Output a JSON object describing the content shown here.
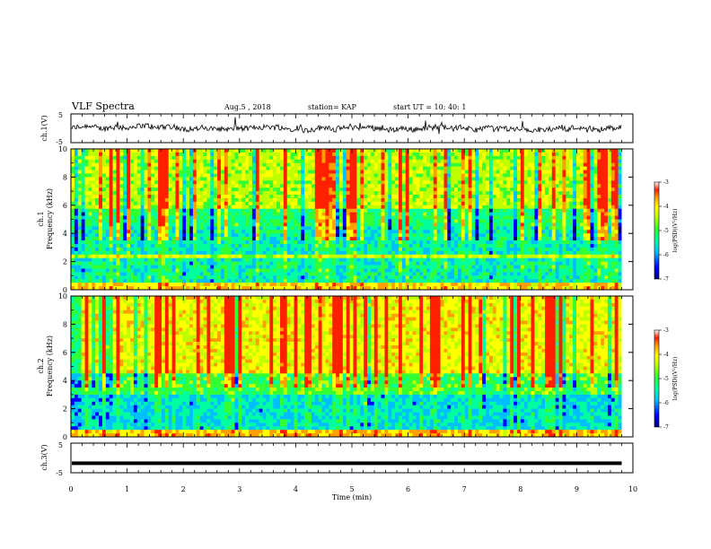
{
  "header": {
    "title": "VLF Spectra",
    "date": "Aug.5  , 2018",
    "station": "station= KAP",
    "start": "start  UT =   10: 40: 1"
  },
  "chart_data": [
    {
      "type": "line",
      "name": "ch1-waveform",
      "ylabel": "ch.1(V)",
      "ylim": [
        -5,
        5
      ],
      "yticks": [
        "5",
        "-5"
      ],
      "xlim": [
        0,
        10
      ],
      "data_extent_min": 9.8,
      "baseline": 0,
      "approx_amplitude": 1.2
    },
    {
      "type": "heatmap",
      "name": "ch1-spectrogram",
      "ylabel": "ch.1\nFrequency (kHz)",
      "ylim": [
        0,
        10
      ],
      "yticks": [
        "0",
        "2",
        "4",
        "6",
        "8",
        "10"
      ],
      "xlim": [
        0,
        10
      ],
      "data_extent_min": 9.8,
      "colorbar": {
        "label": "log(PSD)(V²/Hz)",
        "range": [
          -7,
          -3
        ],
        "ticks": [
          "-3",
          "-4",
          "-5",
          "-6",
          "-7"
        ]
      }
    },
    {
      "type": "heatmap",
      "name": "ch2-spectrogram",
      "ylabel": "ch.2\nFrequency (kHz)",
      "ylim": [
        0,
        10
      ],
      "yticks": [
        "0",
        "2",
        "4",
        "6",
        "8",
        "10"
      ],
      "xlim": [
        0,
        10
      ],
      "data_extent_min": 9.8,
      "colorbar": {
        "label": "log(PSD)(V²/Hz)",
        "range": [
          -7,
          -3
        ],
        "ticks": [
          "-3",
          "-4",
          "-5",
          "-6",
          "-7"
        ]
      }
    },
    {
      "type": "line",
      "name": "ch3-waveform",
      "ylabel": "ch.3(V)",
      "ylim": [
        -5,
        5
      ],
      "yticks": [
        "5",
        "-5"
      ],
      "xlim": [
        0,
        10
      ],
      "data_extent_min": 9.8,
      "baseline": -1.8
    }
  ],
  "xaxis": {
    "label": "Time  (min)",
    "ticks": [
      "0",
      "1",
      "2",
      "3",
      "4",
      "5",
      "6",
      "7",
      "8",
      "9",
      "10"
    ]
  },
  "colors": {
    "palette": [
      "#00007f",
      "#0000ff",
      "#00bfff",
      "#00ff9f",
      "#33ff33",
      "#bfff00",
      "#ffff00",
      "#ff9f00",
      "#ff2000",
      "#ffffff"
    ]
  }
}
